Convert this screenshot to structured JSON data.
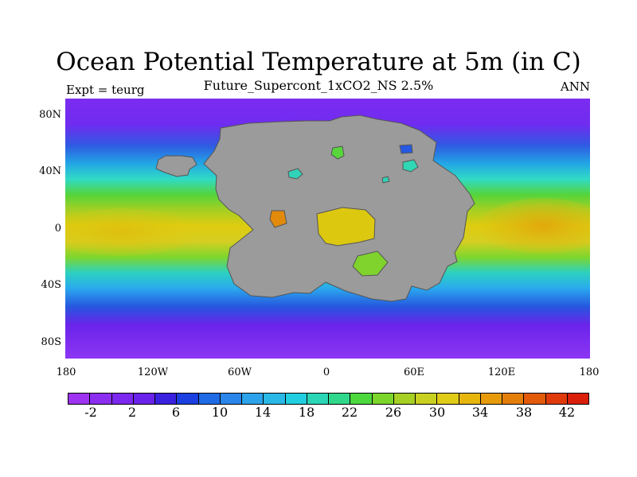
{
  "header": {
    "title": "Ocean Potential Temperature at 5m (in C)",
    "subtitle": "Future_Supercont_1xCO2_NS 2.5%",
    "left_label": "Expt = teurg",
    "right_label": "ANN"
  },
  "axes": {
    "y_ticks": [
      "80N",
      "40N",
      "0",
      "40S",
      "80S"
    ],
    "x_ticks": [
      "180",
      "120W",
      "60W",
      "0",
      "60E",
      "120E",
      "180"
    ]
  },
  "colorbar": {
    "colors": [
      "#9e34f1",
      "#8b2ef0",
      "#7c28ee",
      "#6a23ea",
      "#3a21e0",
      "#1b3fe0",
      "#1f6ae5",
      "#2a86ea",
      "#2ca3eb",
      "#2ab8e7",
      "#21cfe0",
      "#2ad6b6",
      "#2fd88b",
      "#4dd83d",
      "#7bd52a",
      "#a7d024",
      "#c8d11f",
      "#e0cb17",
      "#e7b60d",
      "#e79b0b",
      "#e47e0b",
      "#e35a0b",
      "#e03a0b",
      "#da1f0b"
    ],
    "labels": [
      "-2",
      "2",
      "6",
      "10",
      "14",
      "18",
      "22",
      "26",
      "30",
      "34",
      "38",
      "42"
    ]
  }
}
